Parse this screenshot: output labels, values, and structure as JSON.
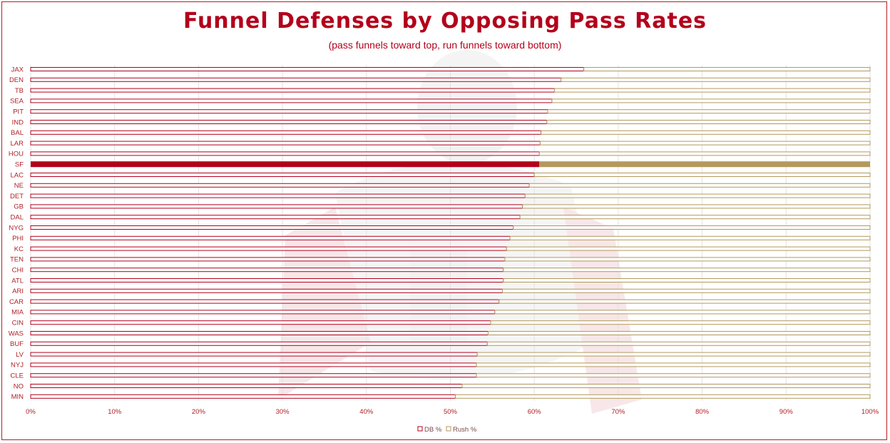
{
  "chart_data": {
    "type": "bar",
    "orientation": "horizontal",
    "stacked": true,
    "title": "Funnel Defenses by Opposing Pass Rates",
    "subtitle": "(pass funnels toward top, run funnels toward bottom)",
    "categories": [
      "JAX",
      "DEN",
      "TB",
      "SEA",
      "PIT",
      "IND",
      "BAL",
      "LAR",
      "HOU",
      "SF",
      "LAC",
      "NE",
      "DET",
      "GB",
      "DAL",
      "NYG",
      "PHI",
      "KC",
      "TEN",
      "CHI",
      "ATL",
      "ARI",
      "CAR",
      "MIA",
      "CIN",
      "WAS",
      "BUF",
      "LV",
      "NYJ",
      "CLE",
      "NO",
      "MIN"
    ],
    "highlight": "SF",
    "series": [
      {
        "name": "DB %",
        "color": "#b3001b",
        "values": [
          0.659,
          0.632,
          0.624,
          0.621,
          0.616,
          0.615,
          0.608,
          0.607,
          0.606,
          0.606,
          0.6,
          0.594,
          0.589,
          0.586,
          0.583,
          0.575,
          0.571,
          0.567,
          0.565,
          0.563,
          0.563,
          0.562,
          0.558,
          0.553,
          0.548,
          0.545,
          0.544,
          0.532,
          0.531,
          0.531,
          0.514,
          0.506
        ]
      },
      {
        "name": "Rush %",
        "color": "#b3995d",
        "values": [
          0.341,
          0.368,
          0.376,
          0.379,
          0.384,
          0.385,
          0.392,
          0.393,
          0.394,
          0.394,
          0.4,
          0.406,
          0.411,
          0.414,
          0.417,
          0.425,
          0.429,
          0.433,
          0.435,
          0.437,
          0.437,
          0.438,
          0.442,
          0.447,
          0.452,
          0.455,
          0.456,
          0.468,
          0.469,
          0.469,
          0.486,
          0.494
        ]
      }
    ],
    "xlim": [
      0,
      1
    ],
    "x_ticks": [
      "0%",
      "10%",
      "20%",
      "30%",
      "40%",
      "50%",
      "60%",
      "70%",
      "80%",
      "90%",
      "100%"
    ],
    "grid": true,
    "legend": "bottom-center"
  }
}
